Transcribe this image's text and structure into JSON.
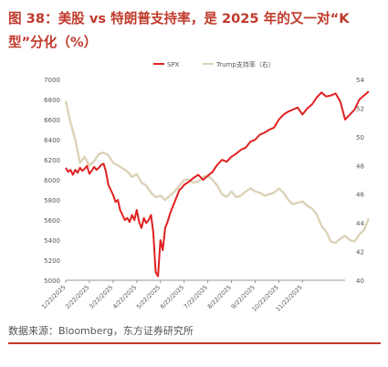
{
  "title": "图 38：美股 vs 特朗普支持率，是 2025 年的又一对“K 型”分化（%）",
  "source": "数据来源：Bloomberg，东方证券研究所",
  "chart_data": {
    "type": "line",
    "legend_position": "top",
    "grid": false,
    "x_ticks": [
      "1/22/2025",
      "2/22/2025",
      "3/22/2025",
      "4/22/2025",
      "5/22/2025",
      "6/22/2025",
      "7/22/2025",
      "8/22/2025",
      "9/22/2025",
      "10/22/2025",
      "11/22/2025"
    ],
    "y_left": {
      "min": 5000,
      "max": 7000,
      "ticks": [
        5000,
        5200,
        5400,
        5600,
        5800,
        6000,
        6200,
        6400,
        6600,
        6800,
        7000
      ]
    },
    "y_right": {
      "min": 40,
      "max": 54,
      "ticks": [
        40,
        42,
        44,
        46,
        48,
        50,
        52,
        54
      ]
    },
    "series": [
      {
        "name": "SPX",
        "color": "#e02020",
        "axis": "left",
        "x": [
          0,
          0.1,
          0.2,
          0.3,
          0.4,
          0.5,
          0.6,
          0.7,
          0.8,
          0.9,
          1.0,
          1.1,
          1.2,
          1.3,
          1.4,
          1.5,
          1.6,
          1.7,
          1.8,
          1.9,
          2.0,
          2.1,
          2.2,
          2.3,
          2.4,
          2.5,
          2.6,
          2.7,
          2.8,
          2.9,
          3.0,
          3.1,
          3.2,
          3.3,
          3.4,
          3.5,
          3.6,
          3.7,
          3.8,
          3.9,
          4.0,
          4.1,
          4.2,
          4.3,
          4.4,
          4.5,
          4.6,
          4.7,
          4.8,
          4.9,
          5.0,
          5.2,
          5.4,
          5.6,
          5.8,
          6.0,
          6.2,
          6.4,
          6.6,
          6.8,
          7.0,
          7.2,
          7.4,
          7.6,
          7.8,
          8.0,
          8.2,
          8.4,
          8.6,
          8.8,
          9.0,
          9.2,
          9.4,
          9.6,
          9.8,
          10.0,
          10.2,
          10.4,
          10.6,
          10.8,
          11.0,
          11.2,
          11.4,
          11.6,
          11.8,
          12.0,
          12.2,
          12.4,
          12.6,
          12.8
        ],
        "values": [
          6120,
          6080,
          6100,
          6050,
          6100,
          6070,
          6120,
          6090,
          6110,
          6140,
          6060,
          6090,
          6130,
          6100,
          6120,
          6150,
          6160,
          6080,
          5950,
          5900,
          5850,
          5780,
          5800,
          5700,
          5650,
          5600,
          5620,
          5580,
          5650,
          5600,
          5700,
          5580,
          5520,
          5620,
          5570,
          5600,
          5650,
          5480,
          5080,
          5040,
          5400,
          5300,
          5520,
          5580,
          5660,
          5720,
          5780,
          5840,
          5900,
          5920,
          5950,
          5980,
          6020,
          6050,
          6000,
          6040,
          6080,
          6150,
          6200,
          6180,
          6230,
          6260,
          6300,
          6320,
          6380,
          6400,
          6450,
          6470,
          6500,
          6520,
          6600,
          6650,
          6680,
          6700,
          6720,
          6650,
          6710,
          6750,
          6820,
          6870,
          6830,
          6840,
          6860,
          6780,
          6600,
          6650,
          6700,
          6800,
          6840,
          6880
        ]
      },
      {
        "name": "Trump支持率（右）",
        "color": "#dcd2b8",
        "axis": "right",
        "x": [
          0,
          0.2,
          0.4,
          0.6,
          0.8,
          1.0,
          1.2,
          1.4,
          1.6,
          1.8,
          2.0,
          2.2,
          2.4,
          2.6,
          2.8,
          3.0,
          3.2,
          3.4,
          3.6,
          3.8,
          4.0,
          4.2,
          4.4,
          4.6,
          4.8,
          5.0,
          5.2,
          5.4,
          5.6,
          5.8,
          6.0,
          6.2,
          6.4,
          6.6,
          6.8,
          7.0,
          7.2,
          7.4,
          7.6,
          7.8,
          8.0,
          8.2,
          8.4,
          8.6,
          8.8,
          9.0,
          9.2,
          9.4,
          9.6,
          9.8,
          10.0,
          10.2,
          10.4,
          10.6,
          10.8,
          11.0,
          11.2,
          11.4,
          11.6,
          11.8,
          12.0,
          12.2,
          12.4,
          12.6,
          12.8
        ],
        "values": [
          52.5,
          51.0,
          49.8,
          48.2,
          48.6,
          48.0,
          48.3,
          48.8,
          48.9,
          48.7,
          48.2,
          48.0,
          47.8,
          47.6,
          47.2,
          47.4,
          46.8,
          46.6,
          46.1,
          45.8,
          45.9,
          45.6,
          45.9,
          46.2,
          46.6,
          47.0,
          47.0,
          46.8,
          46.9,
          47.2,
          47.3,
          47.0,
          46.6,
          46.0,
          45.8,
          46.2,
          45.8,
          45.9,
          46.2,
          46.4,
          46.2,
          46.1,
          45.9,
          46.0,
          46.1,
          46.4,
          46.1,
          45.6,
          45.3,
          45.4,
          45.5,
          45.2,
          45.0,
          44.6,
          43.8,
          43.4,
          42.7,
          42.6,
          42.9,
          43.1,
          42.8,
          42.7,
          43.2,
          43.5,
          44.3
        ]
      }
    ]
  }
}
